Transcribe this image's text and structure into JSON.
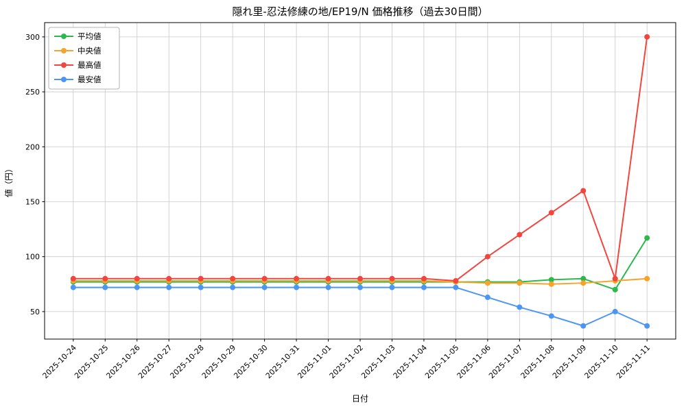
{
  "chart_data": {
    "type": "line",
    "title": "隠れ里-忍法修練の地/EP19/N 価格推移（過去30日間）",
    "xlabel": "日付",
    "ylabel": "値（円）",
    "categories": [
      "2025-10-24",
      "2025-10-25",
      "2025-10-26",
      "2025-10-27",
      "2025-10-28",
      "2025-10-29",
      "2025-10-30",
      "2025-10-31",
      "2025-11-01",
      "2025-11-02",
      "2025-11-03",
      "2025-11-04",
      "2025-11-05",
      "2025-11-06",
      "2025-11-07",
      "2025-11-08",
      "2025-11-09",
      "2025-11-10",
      "2025-11-11"
    ],
    "series": [
      {
        "id": "avg",
        "name": "平均値",
        "color": "#2db84d",
        "values": [
          77,
          77,
          77,
          77,
          77,
          77,
          77,
          77,
          77,
          77,
          77,
          77,
          77,
          77,
          77,
          79,
          80,
          70,
          117
        ]
      },
      {
        "id": "median",
        "name": "中央値",
        "color": "#f7a32a",
        "values": [
          78,
          78,
          78,
          78,
          78,
          78,
          78,
          78,
          78,
          78,
          78,
          78,
          77,
          76,
          76,
          75,
          76,
          78,
          80
        ]
      },
      {
        "id": "max",
        "name": "最高値",
        "color": "#f2453d",
        "values": [
          80,
          80,
          80,
          80,
          80,
          80,
          80,
          80,
          80,
          80,
          80,
          80,
          78,
          100,
          120,
          140,
          160,
          80,
          300
        ]
      },
      {
        "id": "min",
        "name": "最安値",
        "color": "#4b96f3",
        "values": [
          72,
          72,
          72,
          72,
          72,
          72,
          72,
          72,
          72,
          72,
          72,
          72,
          72,
          63,
          54,
          46,
          37,
          50,
          37
        ]
      }
    ],
    "ylim": [
      25,
      313
    ],
    "yticks": [
      50,
      100,
      150,
      200,
      250,
      300
    ],
    "grid": true,
    "grid_color": "#c8c8c8",
    "legend_position": "upper left"
  }
}
